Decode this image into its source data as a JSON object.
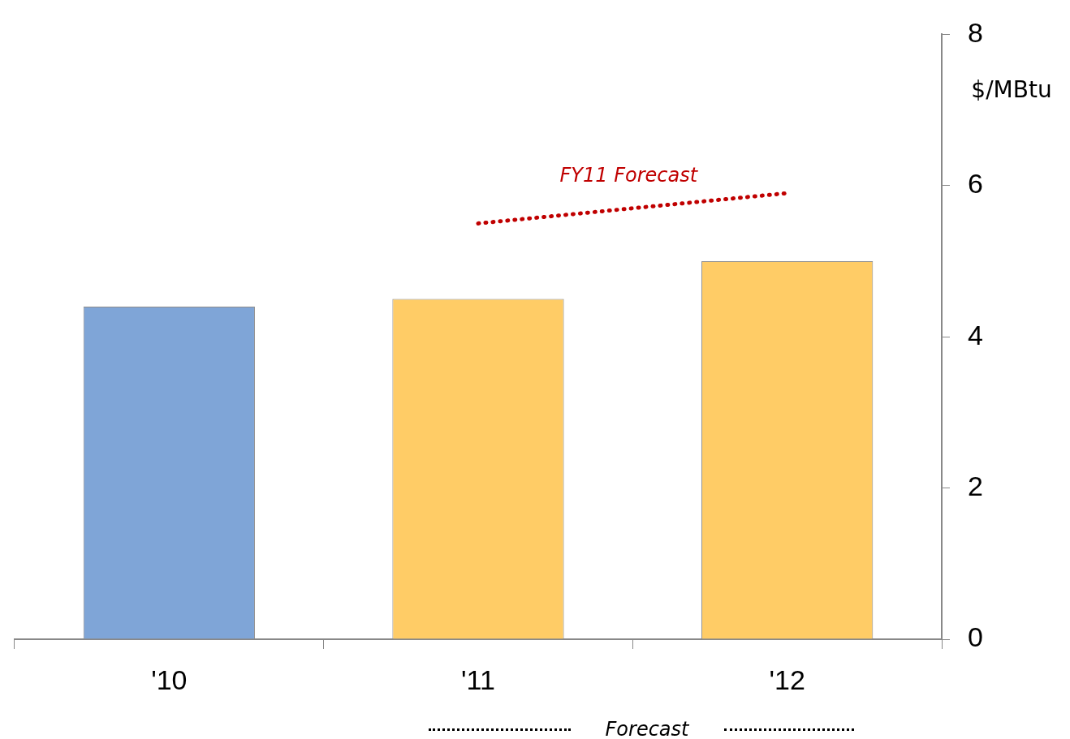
{
  "chart_data": {
    "type": "bar",
    "categories": [
      "'10",
      "'11",
      "'12"
    ],
    "series": [
      {
        "colors": [
          "#7fa5d7",
          "#ffcc66",
          "#ffcc66"
        ],
        "values": [
          4.4,
          4.5,
          5.0
        ]
      },
      {
        "type": "line",
        "name": "FY11 Forecast",
        "color": "#c00000",
        "line_style": "dotted",
        "marker": "none",
        "values": [
          null,
          5.5,
          5.9
        ]
      }
    ],
    "ylabel": "$/MBtu",
    "ylim": [
      0,
      8
    ],
    "yticks": [
      0,
      2,
      4,
      6,
      8
    ],
    "grid": false,
    "legend": false,
    "annotations": [
      "Forecast"
    ]
  }
}
